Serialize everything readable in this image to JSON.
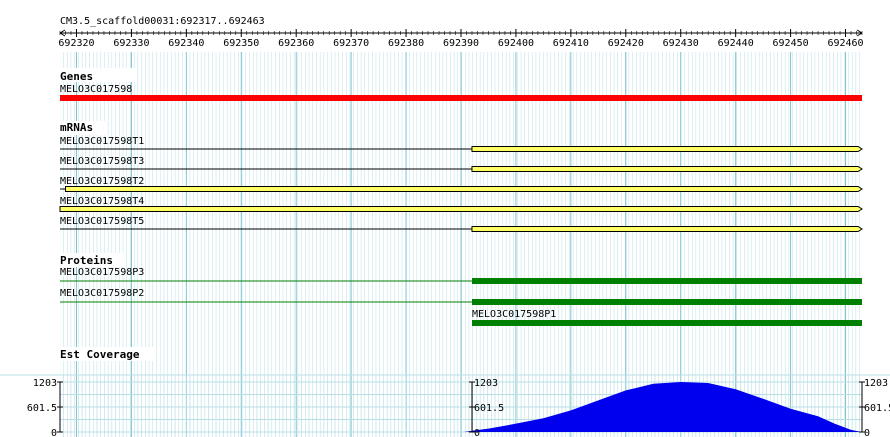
{
  "ruler": {
    "title": "CM3.5_scaffold00031:692317..692463",
    "ticks": [
      "692320",
      "692330",
      "692340",
      "692350",
      "692360",
      "692370",
      "692380",
      "692390",
      "692400",
      "692410",
      "692420",
      "692430",
      "692440",
      "692450",
      "692460"
    ],
    "start_bp": 692317,
    "end_bp": 692463
  },
  "genes": {
    "title": "Genes",
    "items": [
      {
        "name": "MELO3C017598",
        "start": 692317,
        "end": 692463,
        "color": "#ff0000"
      }
    ]
  },
  "mrnas": {
    "title": "mRNAs",
    "items": [
      {
        "name": "MELO3C017598T1",
        "line_start": 692317,
        "block_start": 692392,
        "end": 692463
      },
      {
        "name": "MELO3C017598T3",
        "line_start": 692317,
        "block_start": 692392,
        "end": 692463
      },
      {
        "name": "MELO3C017598T2",
        "line_start": 692317,
        "block_start": 692318,
        "end": 692463
      },
      {
        "name": "MELO3C017598T4",
        "line_start": 692317,
        "block_start": 692317,
        "end": 692463
      },
      {
        "name": "MELO3C017598T5",
        "line_start": 692317,
        "block_start": 692392,
        "end": 692463
      }
    ],
    "color": "#ffff66"
  },
  "proteins": {
    "title": "Proteins",
    "items": [
      {
        "name": "MELO3C017598P3",
        "line_start": 692317,
        "block_start": 692392,
        "end": 692463
      },
      {
        "name": "MELO3C017598P2",
        "line_start": 692317,
        "block_start": 692392,
        "end": 692463
      },
      {
        "name": "MELO3C017598P1",
        "line_start": 692392,
        "block_start": 692392,
        "end": 692463
      }
    ],
    "color": "#008000"
  },
  "coverage": {
    "title": "Est Coverage",
    "labels": [
      "1203",
      "601.5",
      "0"
    ],
    "max": 1203,
    "color": "#0000ee",
    "points": [
      [
        692392,
        30
      ],
      [
        692395,
        80
      ],
      [
        692400,
        200
      ],
      [
        692405,
        330
      ],
      [
        692410,
        520
      ],
      [
        692415,
        760
      ],
      [
        692420,
        1000
      ],
      [
        692425,
        1160
      ],
      [
        692430,
        1203
      ],
      [
        692435,
        1180
      ],
      [
        692440,
        1030
      ],
      [
        692445,
        800
      ],
      [
        692450,
        560
      ],
      [
        692455,
        380
      ],
      [
        692458,
        200
      ],
      [
        692461,
        50
      ],
      [
        692463,
        0
      ]
    ]
  }
}
